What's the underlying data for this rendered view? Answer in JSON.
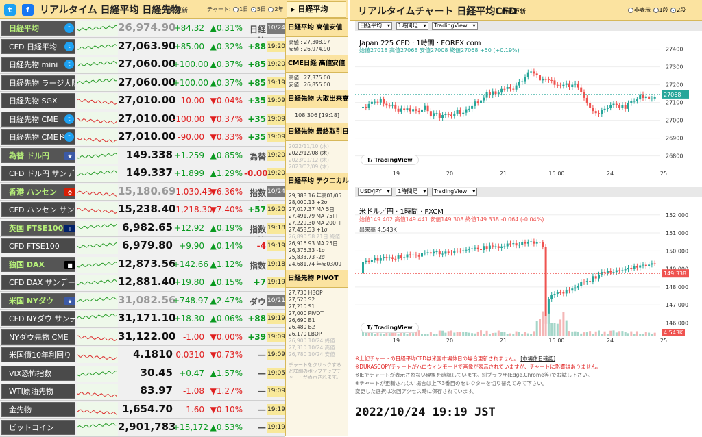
{
  "left_header": {
    "title": "リアルタイム 日経平均 日経先物",
    "auto": "自動更新",
    "chart_label": "チャート:",
    "r1": "1日",
    "r5": "5日",
    "r2": "2年",
    "right_title": "日経平均"
  },
  "rows": [
    {
      "name": "日経平均",
      "cat": true,
      "price": "26,974.90",
      "change": "+84.32",
      "pct": "▲0.31%",
      "diff": "日経比",
      "time": "10/24",
      "dim": true,
      "dir": "up",
      "tgray": true
    },
    {
      "name": "CFD 日経平均",
      "price": "27,063.90",
      "change": "+85.00",
      "pct": "▲0.32%",
      "diff": "+88",
      "time": "19:20",
      "dir": "up"
    },
    {
      "name": "日経先物 mini",
      "price": "27,060.00",
      "change": "+100.00",
      "pct": "▲0.37%",
      "diff": "+85",
      "time": "19:20",
      "dir": "up"
    },
    {
      "name": "日経先物 ラージ大阪",
      "price": "27,060.00",
      "change": "+100.00",
      "pct": "▲0.37%",
      "diff": "+85",
      "time": "19:19",
      "dir": "up"
    },
    {
      "name": "日経先物 SGX",
      "price": "27,010.00",
      "change": "-10.00",
      "pct": "▼0.04%",
      "diff": "+35",
      "time": "19:09",
      "dir": "dn"
    },
    {
      "name": "日経先物 CME",
      "price": "27,010.00",
      "change": "-100.00",
      "pct": "▼0.37%",
      "diff": "+35",
      "time": "19:09",
      "dir": "dn"
    },
    {
      "name": "日経先物 CMEドル",
      "price": "27,010.00",
      "change": "-90.00",
      "pct": "▼0.33%",
      "diff": "+35",
      "time": "19:09",
      "dir": "dn"
    },
    {
      "name": "為替 ドル円",
      "cat": true,
      "price": "149.338",
      "change": "+1.259",
      "pct": "▲0.85%",
      "diff": "為替比",
      "time": "19:20",
      "dir": "up"
    },
    {
      "name": "CFD ドル円 サンデー",
      "price": "149.337",
      "change": "+1.899",
      "pct": "▲1.29%",
      "diff": "-0.00",
      "time": "19:20",
      "dir": "up"
    },
    {
      "name": "香港 ハンセン",
      "cat": true,
      "price": "15,180.69",
      "change": "-1,030.43",
      "pct": "▼6.36%",
      "diff": "指数比",
      "time": "10/24",
      "dim": true,
      "dir": "dn",
      "tgray": true
    },
    {
      "name": "CFD ハンセン サンデー",
      "price": "15,238.40",
      "change": "-1,218.30",
      "pct": "▼7.40%",
      "diff": "+57",
      "time": "19:20",
      "dir": "dn"
    },
    {
      "name": "英国 FTSE100",
      "cat": true,
      "price": "6,982.65",
      "change": "+12.92",
      "pct": "▲0.19%",
      "diff": "指数比",
      "time": "19:18",
      "dir": "up"
    },
    {
      "name": "CFD FTSE100",
      "price": "6,979.80",
      "change": "+9.90",
      "pct": "▲0.14%",
      "diff": "-4",
      "time": "19:19",
      "dir": "up"
    },
    {
      "name": "独国 DAX",
      "cat": true,
      "price": "12,873.56",
      "change": "+142.66",
      "pct": "▲1.12%",
      "diff": "指数比",
      "time": "19:18",
      "dir": "up"
    },
    {
      "name": "CFD DAX サンデー",
      "price": "12,881.40",
      "change": "+19.80",
      "pct": "▲0.15%",
      "diff": "+7",
      "time": "19:19",
      "dir": "up"
    },
    {
      "name": "米国 NYダウ",
      "cat": true,
      "price": "31,082.56",
      "change": "+748.97",
      "pct": "▲2.47%",
      "diff": "ダウ比",
      "time": "10/21",
      "dim": true,
      "dir": "up",
      "tgray": true
    },
    {
      "name": "CFD NYダウ サンデー",
      "price": "31,171.10",
      "change": "+18.30",
      "pct": "▲0.06%",
      "diff": "+88",
      "time": "19:19",
      "dir": "up"
    },
    {
      "name": "NYダウ先物 CME",
      "price": "31,122.00",
      "change": "-1.00",
      "pct": "▼0.00%",
      "diff": "+39",
      "time": "19:09",
      "dir": "dn"
    },
    {
      "name": "米国債10年利回り",
      "price": "4.1810",
      "change": "-0.0310",
      "pct": "▼0.73%",
      "diff": "—",
      "time": "19:09",
      "dir": "dn"
    },
    {
      "name": "VIX恐怖指数",
      "price": "30.45",
      "change": "+0.47",
      "pct": "▲1.57%",
      "diff": "—",
      "time": "19:05",
      "dir": "up"
    },
    {
      "name": "WTI原油先物",
      "price": "83.97",
      "change": "-1.08",
      "pct": "▼1.27%",
      "diff": "—",
      "time": "19:09",
      "dir": "dn"
    },
    {
      "name": "金先物",
      "price": "1,654.70",
      "change": "-1.60",
      "pct": "▼0.10%",
      "diff": "—",
      "time": "19:19",
      "dir": "dn"
    },
    {
      "name": "ビットコイン",
      "price": "2,901,783",
      "change": "+15,172",
      "pct": "▲0.53%",
      "diff": "—",
      "time": "19:19",
      "dir": "up"
    }
  ],
  "side": {
    "h1": "日経平均 高値安値",
    "b1a": "高値 : 27,308.97",
    "b1b": "安値 : 26,974.90",
    "h2": "CME日経 高値安値",
    "b2a": "高値 : 27,375.00",
    "b2b": "安値 : 26,855.00",
    "h3": "日経先物 大取出来高",
    "b3": "108,306 [19:18]",
    "h4": "日経先物 最終取引日",
    "b4": [
      "2022/11/10 (木)",
      "2022/12/08 (木)",
      "2023/01/12 (木)",
      "2023/02/09 (木)"
    ],
    "h5": "日経平均 テクニカル",
    "b5": [
      "29,388.16 年高01/05",
      "28,000.13 +2σ",
      "27,017.37 MA 5日",
      "27,491.79 MA 75日",
      "27,229.30 MA 200日",
      "27,458.53 +1σ",
      "26,890.58 21日 終値",
      "26,916.93 MA 25日",
      "26,375.33 -1σ",
      "25,833.73 -2σ",
      "24,681.74 年安03/09"
    ],
    "h6": "日経先物 PIVOT",
    "b6": [
      "27,730 HBOP",
      "27,520 S2",
      "27,210 S1",
      "27,000 PIVOT",
      "26,690 B1",
      "26,480 B2",
      "26,170 LBOP",
      "26,900 10/24 終値",
      "27,310 10/24 高値",
      "26,780 10/24 安値"
    ],
    "b7": "チャートをクリックすると詳細のポップアップチャートが表示されます。"
  },
  "right_header": {
    "title": "リアルタイムチャート 日経平均CFD",
    "auto": "自動更新",
    "o1": "非表示",
    "o2": "1段",
    "o3": "2段"
  },
  "chart1": {
    "sel1": "日経平均",
    "sel2": "1時間足",
    "sel3": "TradingView",
    "title": "Japan 225 CFD · 1時間 · FOREX.com",
    "ohlc": "始値27018 高値27068 安値27008 終値27068 +50 (+0.19%)",
    "last": "27068",
    "ticks": [
      "27400",
      "27300",
      "27200",
      "27100",
      "27000",
      "26900",
      "26800"
    ],
    "xt": [
      "19",
      "20",
      "21",
      "15:00",
      "24",
      "25"
    ]
  },
  "chart2": {
    "sel1": "USD/JPY",
    "sel2": "1時間足",
    "sel3": "TradingView",
    "title": "米ドル／円 · 1時間 · FXCM",
    "ohlc": "始値149.402 高値149.441 安値149.308 終値149.338 -0.064 (-0.04%)",
    "vol": "出来高 4.543K",
    "last": "149.338",
    "vlast": "4.543K",
    "ticks": [
      "152.000",
      "151.000",
      "150.000",
      "149.000",
      "148.000",
      "147.000",
      "146.000"
    ],
    "xt": [
      "19",
      "20",
      "21",
      "15:00",
      "24",
      "25"
    ]
  },
  "tv_label": "TradingView",
  "notes": {
    "n1": "※上記チャートの日経平均CFDは米国市場休日の場合更新されません。",
    "n1b": "[市場休日確認]",
    "n2": "※DUKASCOPYチャートがハロウィンモードで画像が表示されていますが、チャートに影響はありません。",
    "n3": "※IEでチャートが表示されない現象を確認しています。別ブラウザ(Edge,Chrome等)でお試し下さい。",
    "n4": "※チャートが更新されない場合は上下3番目のセレクターを切り替えてみて下さい。",
    "n5": "変更した選択は次回アクセス時に保存されています。"
  },
  "timestamp": "2022/10/24 19:19 JST",
  "colors": {
    "up": "#0a9a20",
    "down": "#e02020",
    "header": "#fbe3a0",
    "candle_up": "#26a69a",
    "candle_down": "#ef5350"
  }
}
